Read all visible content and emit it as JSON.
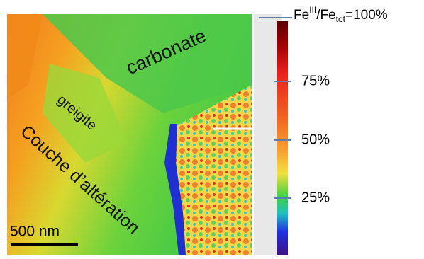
{
  "map": {
    "labels": {
      "carbonate": "carbonate",
      "greigite": "greigite",
      "alteration": "Couche d’altération"
    },
    "scale_bar": "500 nm"
  },
  "colorbar": {
    "top_label": {
      "fe": "Fe",
      "sup": "III",
      "slash": "/Fe",
      "sub": "tot",
      "value": "=100%"
    },
    "ticks": [
      "75%",
      "50%",
      "25%"
    ]
  }
}
